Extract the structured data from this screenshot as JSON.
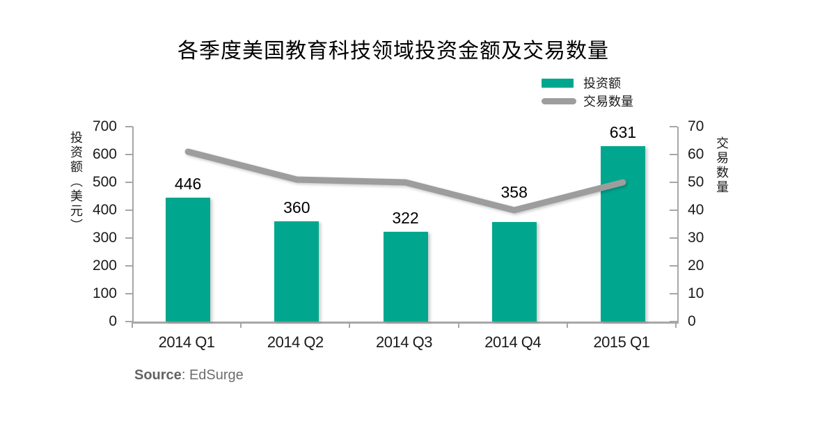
{
  "title": "各季度美国教育科技领域投资金额及交易数量",
  "legend": {
    "items": [
      {
        "label": "投资额",
        "type": "bar",
        "color": "#00a78e"
      },
      {
        "label": "交易数量",
        "type": "line",
        "color": "#9d9d9d"
      }
    ],
    "position": "top-right"
  },
  "source": {
    "prefix": "Source",
    "separator": ": ",
    "name": "EdSurge"
  },
  "chart_data": {
    "type": "bar+line combo",
    "title": "各季度美国教育科技领域投资金额及交易数量",
    "categories": [
      "2014 Q1",
      "2014 Q2",
      "2014 Q3",
      "2014 Q4",
      "2015 Q1"
    ],
    "series": [
      {
        "name": "投资额",
        "type": "bar",
        "axis": "left",
        "color": "#00a78e",
        "values": [
          446,
          360,
          322,
          358,
          631
        ],
        "data_labels": [
          "446",
          "360",
          "322",
          "358",
          "631"
        ]
      },
      {
        "name": "交易数量",
        "type": "line",
        "axis": "right",
        "color": "#9d9d9d",
        "values": [
          61,
          51,
          50,
          40,
          50
        ]
      }
    ],
    "left_axis": {
      "label": "投资额（美元）",
      "min": 0,
      "max": 700,
      "step": 100,
      "ticks": [
        700,
        600,
        500,
        400,
        300,
        200,
        100,
        0
      ]
    },
    "right_axis": {
      "label": "交易数量",
      "min": 0,
      "max": 70,
      "step": 10,
      "ticks": [
        70,
        60,
        50,
        40,
        30,
        20,
        10,
        0
      ]
    },
    "grid": false,
    "legend_position": "top-right",
    "axis_color": "#a6a6a6"
  }
}
